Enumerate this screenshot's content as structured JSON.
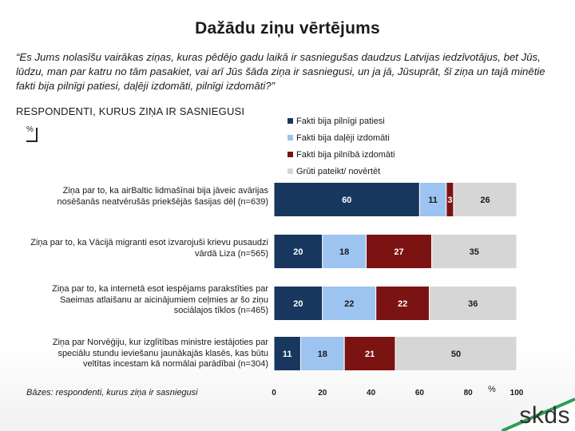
{
  "page": {
    "title": "Dažādu ziņu vērtējums",
    "question": "“Es Jums nolasīšu vairākas ziņas, kuras pēdējo gadu laikā ir sasniegušas daudzus Latvijas iedzīvotājus, bet Jūs, lūdzu, man par katru no tām pasakiet, vai arī Jūs šāda ziņa ir sasniegusi, un ja jā, Jūsuprāt, šī ziņa un tajā minētie fakti bija pilnīgi patiesi, daļēji izdomāti, pilnīgi izdomāti?”",
    "base_label": "RESPONDENTI, KURUS ZIŅA IR SASNIEGUSI",
    "unit": "%",
    "footnote": "Bāzes: respondenti, kurus ziņa ir sasniegusi",
    "axis_unit": "%",
    "logo": "skds"
  },
  "chart_data": {
    "type": "bar",
    "orientation": "horizontal",
    "stacked": true,
    "title": "Dažādu ziņu vērtējums",
    "xlim": [
      0,
      100
    ],
    "x_ticks": [
      "0",
      "20",
      "40",
      "60",
      "80",
      "100"
    ],
    "legend_position": "top-right",
    "categories": [
      "Ziņa par to, ka airBaltic lidmašīnai bija jāveic avārijas nosēšanās neatvērušās priekšējās šasijas dēļ (n=639)",
      "Ziņa par to, ka Vācijā migranti esot izvarojuši krievu pusaudzi vārdā Liza (n=565)",
      "Ziņa par to, ka internetā esot iespējams parakstīties par Saeimas atlaišanu ar aicinājumiem ceļmies ar šo ziņu sociālajos tīklos (n=465)",
      "Ziņa par Norvēģiju, kur izglītības ministre iestājoties par speciālu stundu ieviešanu jaunākajās klasēs, kas būtu veltītas incestam kā normālai parādībai (n=304)"
    ],
    "series": [
      {
        "name": "Fakti bija pilnīgi patiesi",
        "color": "#17375e",
        "values": [
          60,
          20,
          20,
          11
        ]
      },
      {
        "name": "Fakti bija daļēji izdomāti",
        "color": "#9dc3f0",
        "values": [
          11,
          18,
          22,
          18
        ]
      },
      {
        "name": "Fakti bija pilnībā izdomāti",
        "color": "#7b1313",
        "values": [
          3,
          27,
          22,
          21
        ]
      },
      {
        "name": "Grūti pateikt/ novērtēt",
        "color": "#d6d6d6",
        "values": [
          26,
          35,
          36,
          50
        ]
      }
    ]
  }
}
